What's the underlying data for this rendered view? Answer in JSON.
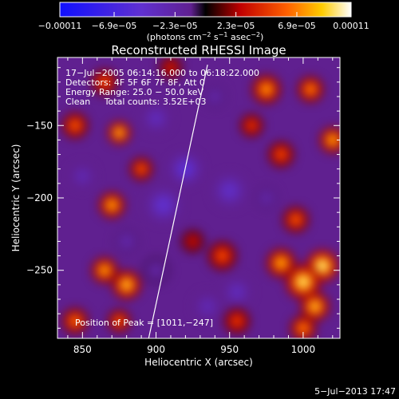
{
  "chart_data": {
    "type": "heatmap",
    "title": "Reconstructed RHESSI Image",
    "xlabel": "Heliocentric X (arcsec)",
    "ylabel": "Heliocentric Y (arcsec)",
    "xlim": [
      833,
      1025
    ],
    "ylim": [
      -297,
      -103
    ],
    "x_ticks": [
      850,
      900,
      950,
      1000
    ],
    "y_ticks": [
      -150,
      -200,
      -250
    ],
    "x_tick_labels": [
      "850",
      "900",
      "950",
      "1000"
    ],
    "y_tick_labels": [
      "−150",
      "−200",
      "−250"
    ],
    "colorbar": {
      "ticks": [
        -0.00011,
        -6.9e-05,
        -2.3e-05,
        2.3e-05,
        6.9e-05,
        0.00011
      ],
      "tick_labels": [
        "−0.00011",
        "−6.9e−05",
        "−2.3e−05",
        "2.3e−05",
        "6.9e−05",
        "0.00011"
      ],
      "unit_prefix": "(photons cm",
      "unit_exp1": "−2",
      "unit_mid": " s",
      "unit_exp2": "−1",
      "unit_mid2": " asec",
      "unit_exp3": "−2",
      "unit_suffix": ")"
    },
    "info": {
      "line1": "17−Jul−2005 06:14:16.000 to 06:18:22.000",
      "line2": "Detectors: 4F 5F 6F 7F 8F, Att 0",
      "line3": "Energy Range: 25.0 − 50.0 keV",
      "line4": "Clean     Total counts: 3.52E+03"
    },
    "peak_label": "Position of Peak = [1011,−247]",
    "peak": [
      1011,
      -247
    ],
    "limb_line": [
      [
        895,
        -297
      ],
      [
        935,
        -108
      ]
    ],
    "blobs": [
      [
        1013,
        -247,
        1.0,
        11
      ],
      [
        1000,
        -258,
        0.95,
        12
      ],
      [
        985,
        -245,
        0.8,
        10
      ],
      [
        1008,
        -275,
        0.85,
        10
      ],
      [
        1000,
        -290,
        0.7,
        9
      ],
      [
        1020,
        -160,
        0.8,
        9
      ],
      [
        975,
        -125,
        0.75,
        10
      ],
      [
        1005,
        -125,
        0.7,
        9
      ],
      [
        985,
        -170,
        0.55,
        9
      ],
      [
        965,
        -150,
        0.5,
        8
      ],
      [
        995,
        -215,
        0.6,
        9
      ],
      [
        945,
        -240,
        0.55,
        10
      ],
      [
        955,
        -285,
        0.5,
        9
      ],
      [
        925,
        -230,
        0.35,
        8
      ],
      [
        880,
        -260,
        0.85,
        10
      ],
      [
        865,
        -250,
        0.8,
        9
      ],
      [
        870,
        -205,
        0.8,
        9
      ],
      [
        875,
        -155,
        0.85,
        8
      ],
      [
        890,
        -180,
        0.6,
        8
      ],
      [
        845,
        -150,
        0.6,
        9
      ],
      [
        865,
        -120,
        0.55,
        9
      ],
      [
        910,
        -110,
        0.4,
        8
      ],
      [
        845,
        -285,
        0.65,
        9
      ],
      [
        875,
        -285,
        0.6,
        8
      ],
      [
        900,
        -145,
        -0.35,
        10
      ],
      [
        905,
        -205,
        -0.45,
        12
      ],
      [
        920,
        -180,
        -0.5,
        11
      ],
      [
        950,
        -195,
        -0.4,
        12
      ],
      [
        955,
        -265,
        -0.35,
        10
      ],
      [
        935,
        -275,
        -0.3,
        10
      ],
      [
        880,
        -230,
        -0.25,
        9
      ],
      [
        850,
        -185,
        -0.3,
        9
      ],
      [
        900,
        -250,
        -0.2,
        10
      ],
      [
        975,
        -200,
        -0.25,
        8
      ],
      [
        940,
        -130,
        -0.25,
        8
      ]
    ]
  },
  "footer": {
    "date": "5−Jul−2013 17:47"
  }
}
